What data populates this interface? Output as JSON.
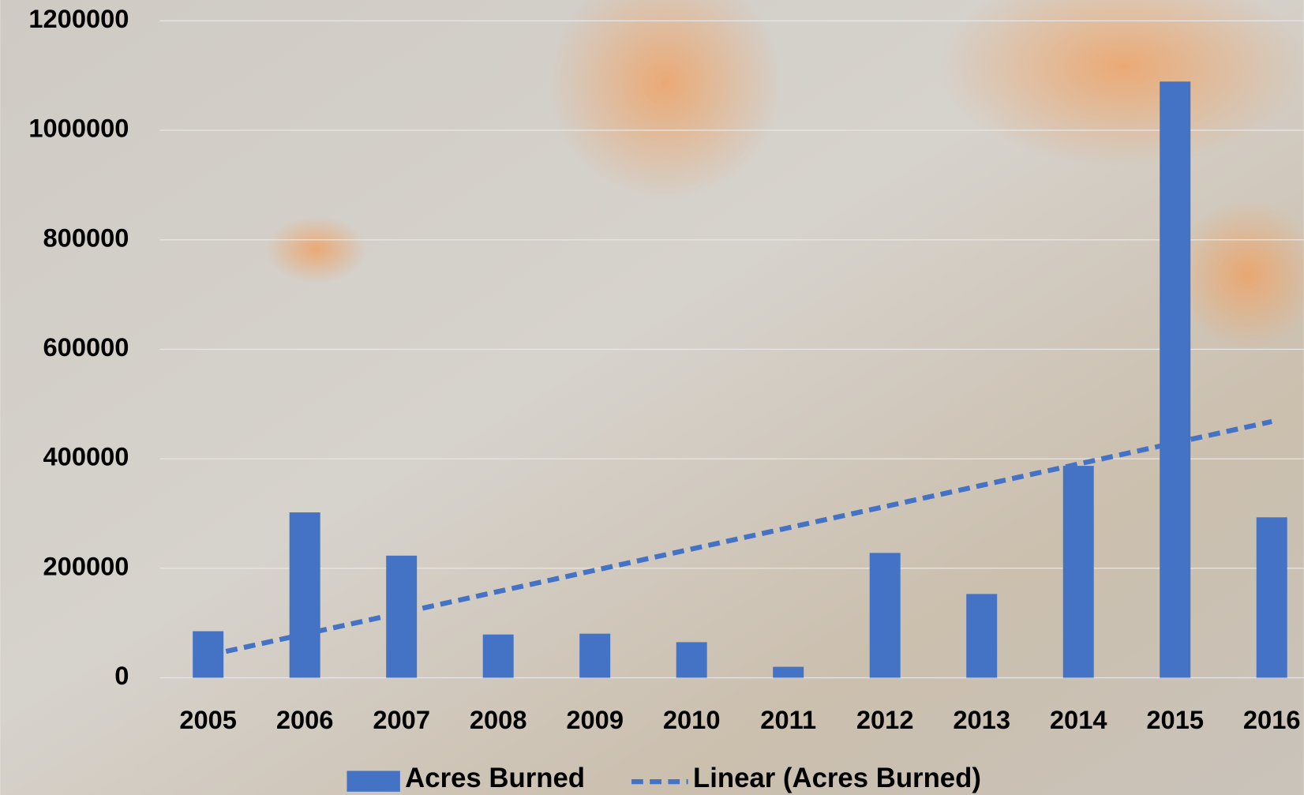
{
  "chart_data": {
    "type": "bar",
    "categories": [
      "2005",
      "2006",
      "2007",
      "2008",
      "2009",
      "2010",
      "2011",
      "2012",
      "2013",
      "2014",
      "2015",
      "2016"
    ],
    "series": [
      {
        "name": "Acres Burned",
        "type": "bar",
        "color": "#4472c4",
        "values": [
          85000,
          302000,
          223000,
          79000,
          80500,
          65000,
          20000,
          228000,
          153000,
          387000,
          1089000,
          293000
        ]
      },
      {
        "name": "Linear (Acres Burned)",
        "type": "line",
        "color": "#4472c4",
        "values": [
          41000,
          79800,
          118600,
          157500,
          196300,
          235100,
          273900,
          312700,
          351500,
          390400,
          429200,
          468000
        ]
      }
    ],
    "ylim": [
      0,
      1200000
    ],
    "yticks": [
      0,
      200000,
      400000,
      600000,
      800000,
      1000000,
      1200000
    ],
    "grid": true,
    "legend": "bottom"
  }
}
